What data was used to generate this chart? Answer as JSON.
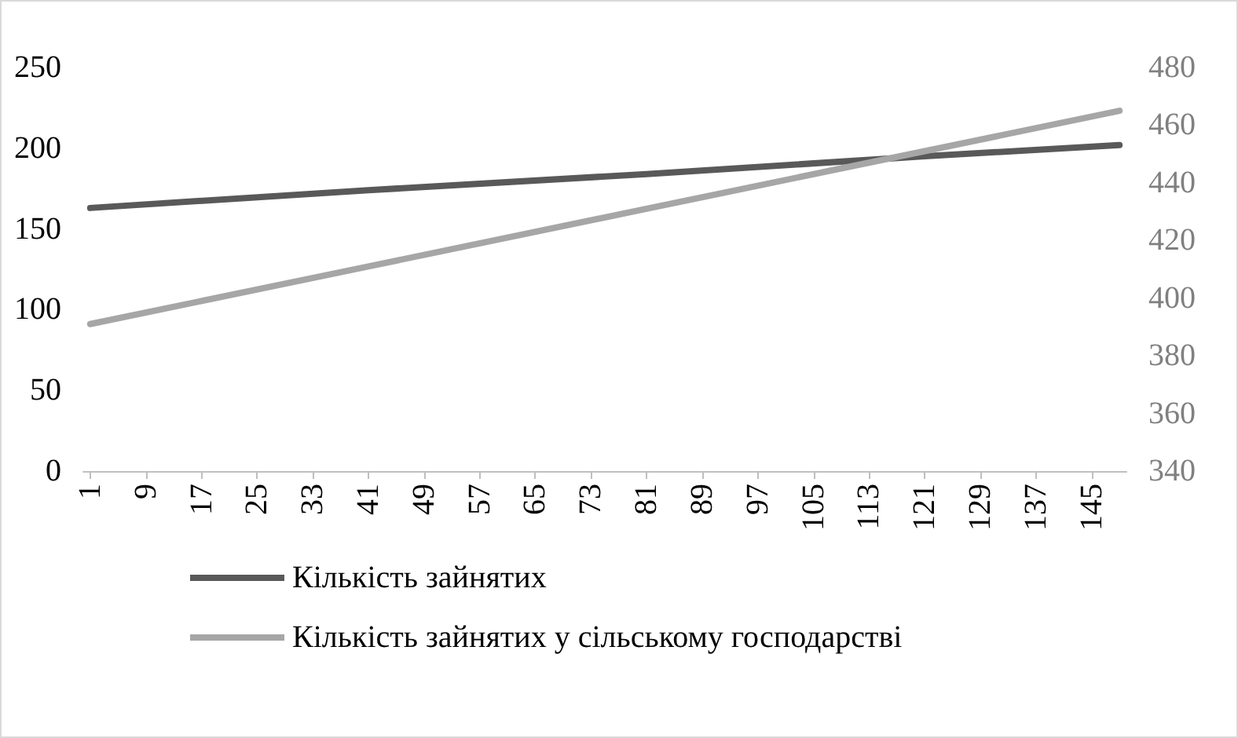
{
  "chart_data": {
    "type": "line",
    "xlim": [
      0,
      150
    ],
    "xticks": [
      1,
      9,
      17,
      25,
      33,
      41,
      49,
      57,
      65,
      73,
      81,
      89,
      97,
      105,
      113,
      121,
      129,
      137,
      145
    ],
    "ylim": [
      0,
      250
    ],
    "yticks": [
      0,
      50,
      100,
      150,
      200,
      250
    ],
    "y2lim": [
      340,
      480
    ],
    "y2ticks": [
      340,
      360,
      380,
      400,
      420,
      440,
      460,
      480
    ],
    "grid": false,
    "legend": "bottom left",
    "marker": "none",
    "line_style": "solid",
    "series": [
      {
        "name": "Кількість зайнятих",
        "color": "#595959",
        "x": [
          1,
          41,
          81,
          121,
          149
        ],
        "values": [
          163,
          174,
          184,
          195,
          202
        ]
      },
      {
        "name": "Кількість зайнятих у сільському господарстві",
        "color": "#a6a6a6",
        "axis": "y2",
        "x": [
          1,
          41,
          81,
          121,
          149
        ],
        "values": [
          391,
          411,
          431,
          451,
          465
        ]
      }
    ]
  }
}
